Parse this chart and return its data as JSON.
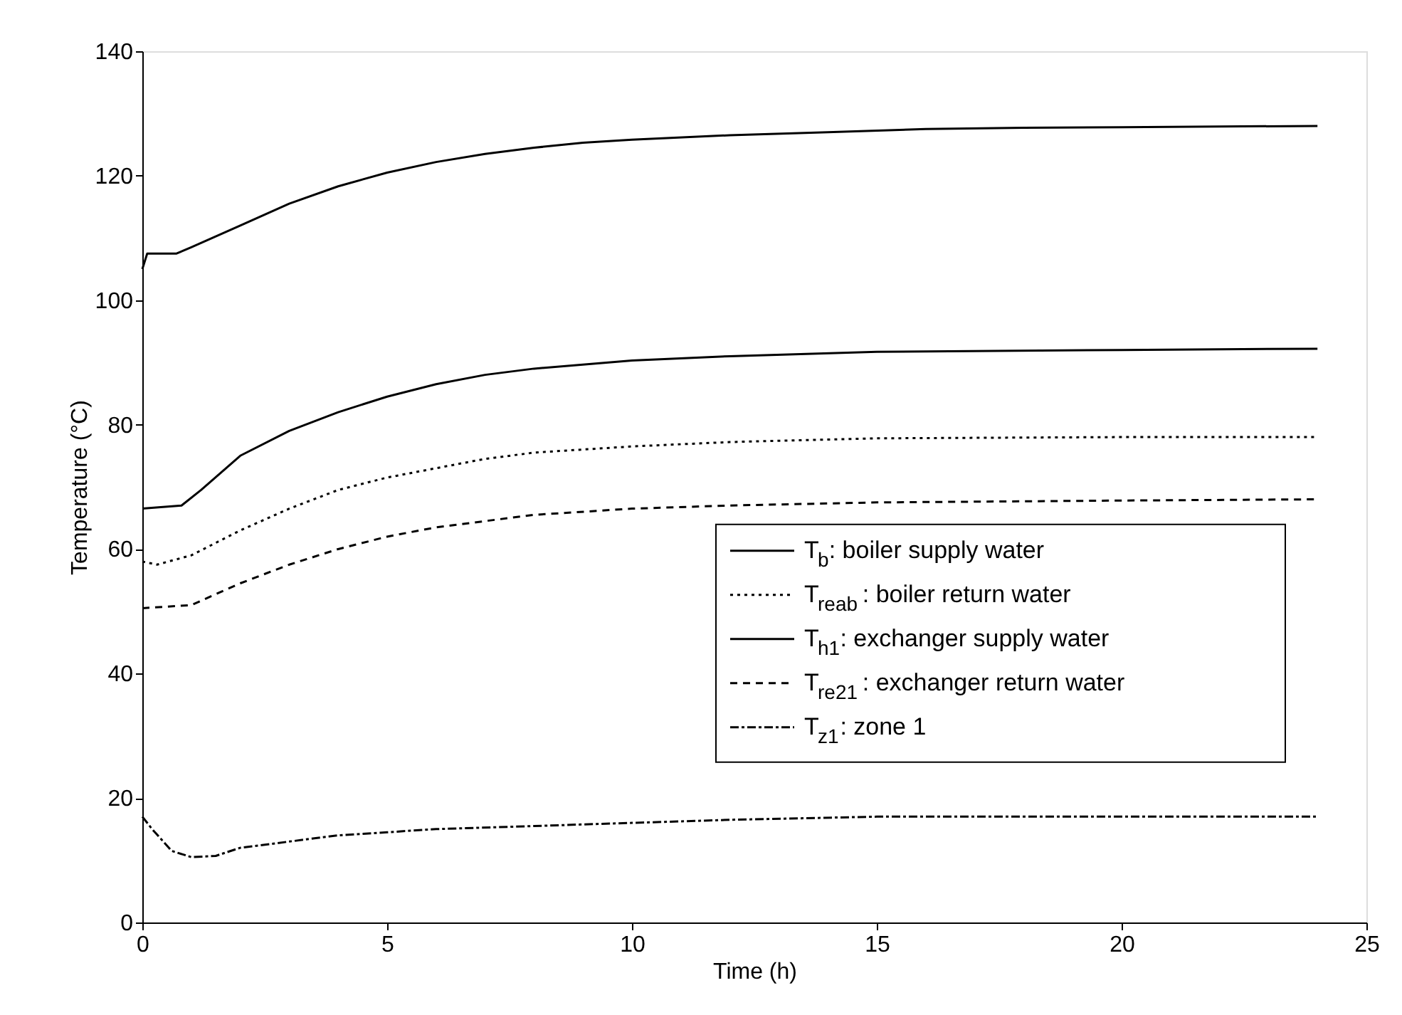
{
  "chart_data": {
    "type": "line",
    "xlabel": "Time (h)",
    "ylabel": "Temperature (°C)",
    "xlim": [
      0,
      25
    ],
    "xticks": [
      0,
      5,
      10,
      15,
      20,
      25
    ],
    "ylim": [
      0,
      140
    ],
    "yticks": [
      0,
      20,
      40,
      60,
      80,
      100,
      120,
      140
    ],
    "grid": false,
    "legend": "right",
    "series": [
      {
        "name": "T$_{b}$: boiler supply water",
        "color": "#000000",
        "line_style": "solid",
        "x": [
          0,
          0.1,
          0.7,
          1,
          2,
          3,
          4,
          5,
          6,
          7,
          8,
          9,
          10,
          12,
          14,
          16,
          18,
          20,
          24
        ],
        "values": [
          105,
          107.5,
          107.5,
          108.5,
          112,
          115.5,
          118.3,
          120.5,
          122.2,
          123.5,
          124.5,
          125.3,
          125.8,
          126.5,
          127,
          127.5,
          127.7,
          127.8,
          128
        ]
      },
      {
        "name": "T$_{reab}$: boiler return water",
        "color": "#000000",
        "line_style": "dotted",
        "x": [
          0,
          0.3,
          1,
          2,
          3,
          4,
          5,
          6,
          7,
          8,
          10,
          12,
          15,
          20,
          24
        ],
        "values": [
          58,
          57.5,
          59,
          63,
          66.5,
          69.5,
          71.5,
          73,
          74.5,
          75.5,
          76.5,
          77.2,
          77.8,
          78,
          78
        ]
      },
      {
        "name": "T$_{h1}$: exchanger supply water",
        "color": "#000000",
        "line_style": "solid",
        "x": [
          0,
          0.8,
          1.2,
          2,
          3,
          4,
          5,
          6,
          7,
          8,
          10,
          12,
          15,
          20,
          24
        ],
        "values": [
          66.5,
          67,
          69.5,
          75,
          79,
          82,
          84.5,
          86.5,
          88,
          89,
          90.3,
          91,
          91.7,
          92,
          92.2
        ]
      },
      {
        "name": "T$_{re21}$: exchanger return water",
        "color": "#000000",
        "line_style": "dashed",
        "x": [
          0,
          1,
          2,
          3,
          4,
          5,
          6,
          7,
          8,
          10,
          12,
          15,
          20,
          24
        ],
        "values": [
          50.5,
          51,
          54.5,
          57.5,
          60,
          62,
          63.5,
          64.5,
          65.5,
          66.5,
          67,
          67.5,
          67.8,
          68
        ]
      },
      {
        "name": "T$_{z1}$: zone 1",
        "color": "#000000",
        "line_style": "dashdot",
        "x": [
          0,
          0.2,
          0.6,
          1,
          1.5,
          2,
          3,
          4,
          5,
          6,
          8,
          10,
          12,
          15,
          20,
          24
        ],
        "values": [
          17,
          15,
          11.5,
          10.5,
          10.7,
          12,
          13,
          14,
          14.5,
          15,
          15.5,
          16,
          16.5,
          17,
          17,
          17
        ]
      }
    ]
  }
}
